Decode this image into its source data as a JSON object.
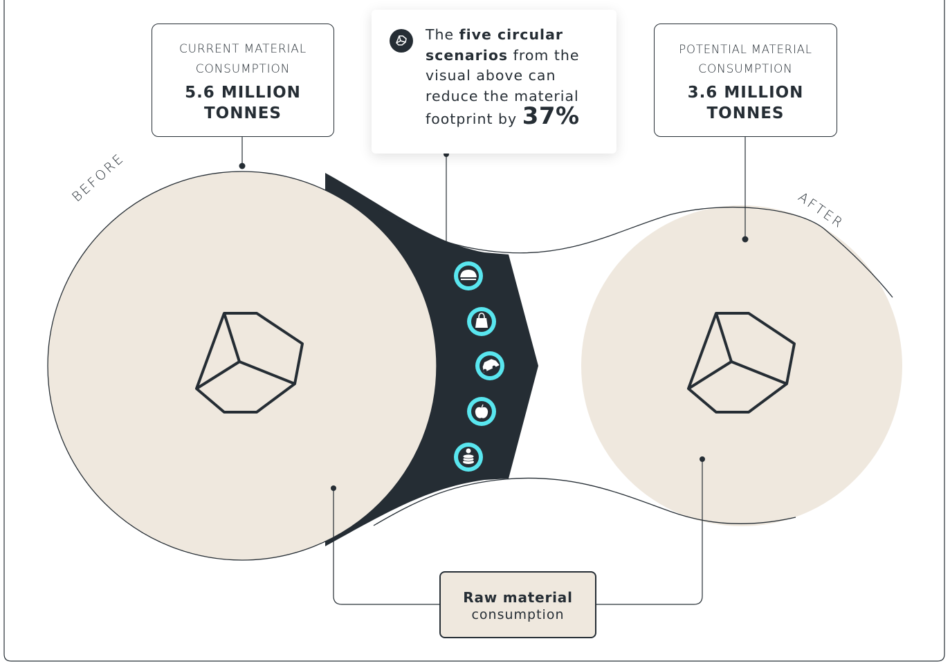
{
  "before_label": "BEFORE",
  "after_label": "AFTER",
  "current": {
    "label_line1": "CURRENT MATERIAL",
    "label_line2": "CONSUMPTION",
    "value_line1": "5.6 MILLION",
    "value_line2": "TONNES"
  },
  "potential": {
    "label_line1": "POTENTIAL MATERIAL",
    "label_line2": "CONSUMPTION",
    "value_line1": "3.6 MILLION",
    "value_line2": "TONNES"
  },
  "callout": {
    "text_1": "The ",
    "bold_1": "five circular scenarios",
    "text_2": " from the visual above can reduce the material footprint by ",
    "percent": "37%"
  },
  "raw_material": {
    "line1": "Raw material",
    "line2": "consumption"
  },
  "scenario_icons": [
    "hat-icon",
    "shopping-bag-icon",
    "car-icon",
    "apple-icon",
    "stacked-discs-icon"
  ],
  "colors": {
    "circle_fill": "#efe8de",
    "dark": "#252d34",
    "icon_accent": "#59e6ef"
  }
}
